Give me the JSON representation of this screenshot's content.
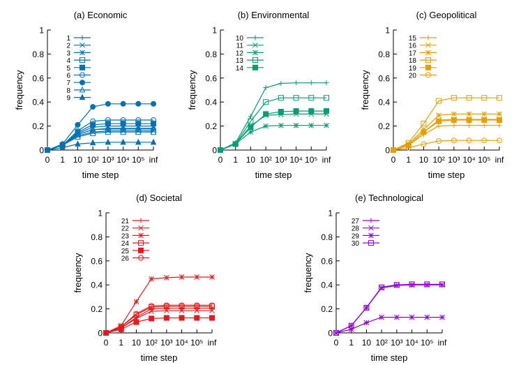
{
  "chart_data": [
    {
      "type": "line",
      "title": "(a) Economic",
      "xlabel": "time step",
      "ylabel": "frequency",
      "x_ticks": [
        "0",
        "1",
        "10",
        "10²",
        "10³",
        "10⁴",
        "10⁵",
        "inf"
      ],
      "x": [
        "0",
        "1",
        "10",
        "10²",
        "10³",
        "10⁴",
        "10⁵",
        "inf"
      ],
      "y_ticks": [
        "0",
        "0.2",
        "0.4",
        "0.6",
        "0.8",
        "1"
      ],
      "ylim": [
        0,
        1
      ],
      "grid": false,
      "legend_position": "top-left",
      "color": "#0072b2",
      "series": [
        {
          "name": "1",
          "marker": "plus",
          "values": [
            0.0,
            0.04,
            0.13,
            0.17,
            0.18,
            0.18,
            0.18,
            0.18
          ]
        },
        {
          "name": "2",
          "marker": "x",
          "values": [
            0.0,
            0.04,
            0.12,
            0.15,
            0.16,
            0.16,
            0.16,
            0.16
          ]
        },
        {
          "name": "3",
          "marker": "star",
          "values": [
            0.0,
            0.04,
            0.14,
            0.19,
            0.2,
            0.2,
            0.2,
            0.2
          ]
        },
        {
          "name": "4",
          "marker": "square-open",
          "values": [
            0.0,
            0.04,
            0.11,
            0.14,
            0.15,
            0.15,
            0.15,
            0.15
          ]
        },
        {
          "name": "5",
          "marker": "square-filled",
          "values": [
            0.0,
            0.04,
            0.15,
            0.21,
            0.22,
            0.22,
            0.22,
            0.22
          ]
        },
        {
          "name": "6",
          "marker": "circle-open",
          "values": [
            0.0,
            0.04,
            0.16,
            0.24,
            0.25,
            0.25,
            0.25,
            0.25
          ]
        },
        {
          "name": "7",
          "marker": "circle-filled",
          "values": [
            0.0,
            0.05,
            0.21,
            0.36,
            0.385,
            0.385,
            0.385,
            0.385
          ]
        },
        {
          "name": "8",
          "marker": "triangle-open",
          "values": [
            0.0,
            0.04,
            0.13,
            0.17,
            0.175,
            0.175,
            0.175,
            0.175
          ]
        },
        {
          "name": "9",
          "marker": "triangle-filled",
          "values": [
            0.0,
            0.02,
            0.05,
            0.06,
            0.065,
            0.065,
            0.065,
            0.065
          ]
        }
      ]
    },
    {
      "type": "line",
      "title": "(b) Environmental",
      "xlabel": "time step",
      "ylabel": "frequency",
      "x_ticks": [
        "0",
        "1",
        "10",
        "10²",
        "10³",
        "10⁴",
        "10⁵",
        "inf"
      ],
      "x": [
        "0",
        "1",
        "10",
        "10²",
        "10³",
        "10⁴",
        "10⁵",
        "inf"
      ],
      "y_ticks": [
        "0",
        "0.2",
        "0.4",
        "0.6",
        "0.8",
        "1"
      ],
      "ylim": [
        0,
        1
      ],
      "grid": false,
      "legend_position": "top-left",
      "color": "#009e73",
      "series": [
        {
          "name": "10",
          "marker": "plus",
          "values": [
            0.0,
            0.06,
            0.28,
            0.52,
            0.555,
            0.56,
            0.56,
            0.56
          ]
        },
        {
          "name": "11",
          "marker": "x",
          "values": [
            0.0,
            0.05,
            0.2,
            0.29,
            0.295,
            0.3,
            0.3,
            0.3
          ]
        },
        {
          "name": "12",
          "marker": "star",
          "values": [
            0.0,
            0.05,
            0.15,
            0.2,
            0.205,
            0.205,
            0.205,
            0.205
          ]
        },
        {
          "name": "13",
          "marker": "square-open",
          "values": [
            0.0,
            0.05,
            0.24,
            0.4,
            0.435,
            0.435,
            0.435,
            0.435
          ]
        },
        {
          "name": "14",
          "marker": "square-filled",
          "values": [
            0.0,
            0.05,
            0.19,
            0.3,
            0.32,
            0.325,
            0.325,
            0.325
          ]
        }
      ]
    },
    {
      "type": "line",
      "title": "(c) Geopolitical",
      "xlabel": "time step",
      "ylabel": "frequency",
      "x_ticks": [
        "0",
        "1",
        "10",
        "10²",
        "10³",
        "10⁴",
        "10⁵",
        "inf"
      ],
      "x": [
        "0",
        "1",
        "10",
        "10²",
        "10³",
        "10⁴",
        "10⁵",
        "inf"
      ],
      "y_ticks": [
        "0",
        "0.2",
        "0.4",
        "0.6",
        "0.8",
        "1"
      ],
      "ylim": [
        0,
        1
      ],
      "grid": false,
      "legend_position": "top-left",
      "color": "#e69f00",
      "series": [
        {
          "name": "15",
          "marker": "plus",
          "values": [
            0.0,
            0.04,
            0.13,
            0.2,
            0.205,
            0.205,
            0.205,
            0.205
          ]
        },
        {
          "name": "16",
          "marker": "x",
          "values": [
            0.0,
            0.04,
            0.15,
            0.25,
            0.255,
            0.255,
            0.255,
            0.255
          ]
        },
        {
          "name": "17",
          "marker": "star",
          "values": [
            0.0,
            0.05,
            0.17,
            0.29,
            0.3,
            0.3,
            0.3,
            0.3
          ]
        },
        {
          "name": "18",
          "marker": "square-open",
          "values": [
            0.0,
            0.06,
            0.22,
            0.41,
            0.435,
            0.435,
            0.435,
            0.435
          ]
        },
        {
          "name": "19",
          "marker": "square-filled",
          "values": [
            0.0,
            0.04,
            0.15,
            0.24,
            0.25,
            0.25,
            0.25,
            0.25
          ]
        },
        {
          "name": "20",
          "marker": "circle-open",
          "values": [
            0.0,
            0.02,
            0.05,
            0.075,
            0.08,
            0.08,
            0.08,
            0.08
          ]
        }
      ]
    },
    {
      "type": "line",
      "title": "(d) Societal",
      "xlabel": "time step",
      "ylabel": "frequency",
      "x_ticks": [
        "0",
        "1",
        "10",
        "10²",
        "10³",
        "10⁴",
        "10⁵",
        "inf"
      ],
      "x": [
        "0",
        "1",
        "10",
        "10²",
        "10³",
        "10⁴",
        "10⁵",
        "inf"
      ],
      "y_ticks": [
        "0",
        "0.2",
        "0.4",
        "0.6",
        "0.8",
        "1"
      ],
      "ylim": [
        0,
        1
      ],
      "grid": false,
      "legend_position": "top-left",
      "color": "#e41a1c",
      "series": [
        {
          "name": "21",
          "marker": "plus",
          "values": [
            0.0,
            0.04,
            0.13,
            0.2,
            0.205,
            0.205,
            0.205,
            0.205
          ]
        },
        {
          "name": "22",
          "marker": "x",
          "values": [
            0.0,
            0.04,
            0.12,
            0.18,
            0.185,
            0.185,
            0.185,
            0.185
          ]
        },
        {
          "name": "23",
          "marker": "star",
          "values": [
            0.0,
            0.06,
            0.26,
            0.45,
            0.46,
            0.465,
            0.465,
            0.465
          ]
        },
        {
          "name": "24",
          "marker": "square-open",
          "values": [
            0.0,
            0.05,
            0.15,
            0.215,
            0.22,
            0.22,
            0.22,
            0.22
          ]
        },
        {
          "name": "25",
          "marker": "square-filled",
          "values": [
            0.0,
            0.03,
            0.09,
            0.12,
            0.125,
            0.125,
            0.125,
            0.125
          ]
        },
        {
          "name": "26",
          "marker": "circle-open",
          "values": [
            0.0,
            0.05,
            0.16,
            0.225,
            0.23,
            0.23,
            0.23,
            0.23
          ]
        }
      ]
    },
    {
      "type": "line",
      "title": "(e) Technological",
      "xlabel": "time step",
      "ylabel": "frequency",
      "x_ticks": [
        "0",
        "1",
        "10",
        "10²",
        "10³",
        "10⁴",
        "10⁵",
        "inf"
      ],
      "x": [
        "0",
        "1",
        "10",
        "10²",
        "10³",
        "10⁴",
        "10⁵",
        "inf"
      ],
      "y_ticks": [
        "0",
        "0.2",
        "0.4",
        "0.6",
        "0.8",
        "1"
      ],
      "ylim": [
        0,
        1
      ],
      "grid": false,
      "legend_position": "top-left",
      "color": "#9400d3",
      "series": [
        {
          "name": "27",
          "marker": "plus",
          "values": [
            0.0,
            0.06,
            0.21,
            0.38,
            0.4,
            0.4,
            0.4,
            0.4
          ]
        },
        {
          "name": "28",
          "marker": "x",
          "values": [
            0.0,
            0.06,
            0.21,
            0.375,
            0.395,
            0.4,
            0.4,
            0.4
          ]
        },
        {
          "name": "29",
          "marker": "star",
          "values": [
            0.0,
            0.03,
            0.085,
            0.13,
            0.13,
            0.13,
            0.13,
            0.13
          ]
        },
        {
          "name": "30",
          "marker": "square-open",
          "values": [
            0.0,
            0.06,
            0.21,
            0.38,
            0.4,
            0.405,
            0.405,
            0.405
          ]
        }
      ]
    }
  ]
}
